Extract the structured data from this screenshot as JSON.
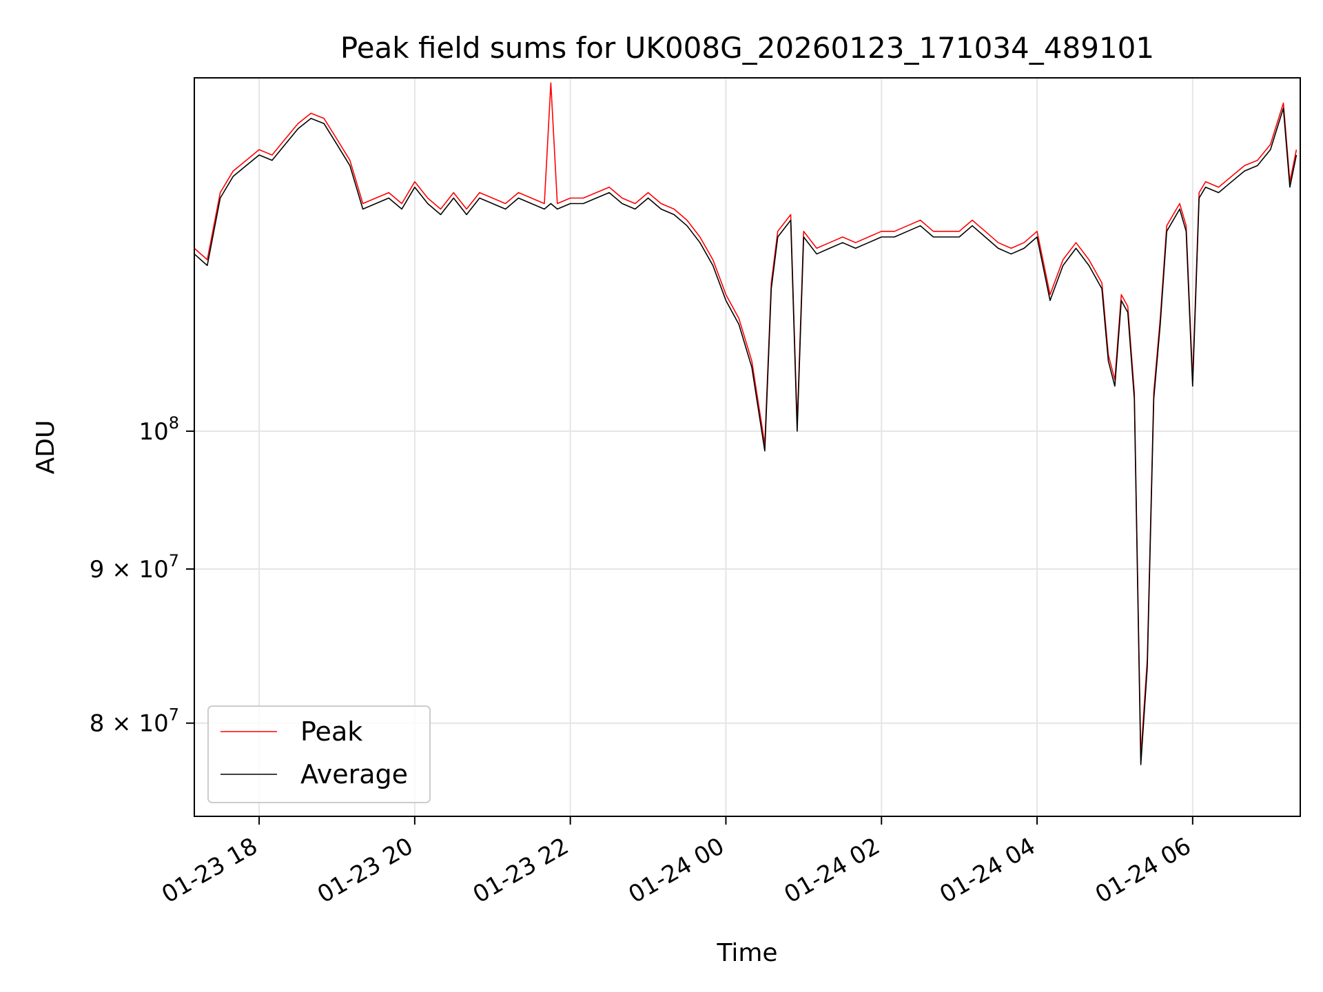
{
  "chart_data": {
    "type": "line",
    "title": "Peak field sums for UK008G_20260123_171034_489101",
    "xlabel": "Time",
    "ylabel": "ADU",
    "y_scale": "log",
    "ylim": [
      74500000,
      131000000
    ],
    "xlim": [
      "2026-01-23 17:10",
      "2026-01-24 07:23"
    ],
    "grid": true,
    "legend_position": "lower-left",
    "x_ticks": [
      {
        "value": "2026-01-23 18:00",
        "label": "01-23 18"
      },
      {
        "value": "2026-01-23 20:00",
        "label": "01-23 20"
      },
      {
        "value": "2026-01-23 22:00",
        "label": "01-23 22"
      },
      {
        "value": "2026-01-24 00:00",
        "label": "01-24 00"
      },
      {
        "value": "2026-01-24 02:00",
        "label": "01-24 02"
      },
      {
        "value": "2026-01-24 04:00",
        "label": "01-24 04"
      },
      {
        "value": "2026-01-24 06:00",
        "label": "01-24 06"
      }
    ],
    "y_ticks": [
      {
        "value": 80000000,
        "base": "8",
        "times": " × ",
        "exp_base": "10",
        "exp": "7"
      },
      {
        "value": 90000000,
        "base": "9",
        "times": " × ",
        "exp_base": "10",
        "exp": "7"
      },
      {
        "value": 100000000,
        "base": "",
        "times": "",
        "exp_base": "10",
        "exp": "8"
      }
    ],
    "colors": {
      "peak": "#ff0000",
      "average": "#000000",
      "grid": "#e5e5e5"
    },
    "series": [
      {
        "name": "Peak",
        "color": "#ff0000",
        "x": [
          "2026-01-23 17:10",
          "2026-01-23 17:20",
          "2026-01-23 17:30",
          "2026-01-23 17:40",
          "2026-01-23 17:50",
          "2026-01-23 18:00",
          "2026-01-23 18:10",
          "2026-01-23 18:20",
          "2026-01-23 18:30",
          "2026-01-23 18:40",
          "2026-01-23 18:50",
          "2026-01-23 19:00",
          "2026-01-23 19:10",
          "2026-01-23 19:20",
          "2026-01-23 19:30",
          "2026-01-23 19:40",
          "2026-01-23 19:50",
          "2026-01-23 20:00",
          "2026-01-23 20:10",
          "2026-01-23 20:20",
          "2026-01-23 20:30",
          "2026-01-23 20:40",
          "2026-01-23 20:50",
          "2026-01-23 21:00",
          "2026-01-23 21:10",
          "2026-01-23 21:20",
          "2026-01-23 21:30",
          "2026-01-23 21:40",
          "2026-01-23 21:45",
          "2026-01-23 21:50",
          "2026-01-23 22:00",
          "2026-01-23 22:10",
          "2026-01-23 22:20",
          "2026-01-23 22:30",
          "2026-01-23 22:40",
          "2026-01-23 22:50",
          "2026-01-23 23:00",
          "2026-01-23 23:10",
          "2026-01-23 23:20",
          "2026-01-23 23:30",
          "2026-01-23 23:40",
          "2026-01-23 23:50",
          "2026-01-24 00:00",
          "2026-01-24 00:10",
          "2026-01-24 00:20",
          "2026-01-24 00:30",
          "2026-01-24 00:35",
          "2026-01-24 00:40",
          "2026-01-24 00:50",
          "2026-01-24 00:55",
          "2026-01-24 01:00",
          "2026-01-24 01:10",
          "2026-01-24 01:20",
          "2026-01-24 01:30",
          "2026-01-24 01:40",
          "2026-01-24 01:50",
          "2026-01-24 02:00",
          "2026-01-24 02:10",
          "2026-01-24 02:20",
          "2026-01-24 02:30",
          "2026-01-24 02:40",
          "2026-01-24 02:50",
          "2026-01-24 03:00",
          "2026-01-24 03:10",
          "2026-01-24 03:20",
          "2026-01-24 03:30",
          "2026-01-24 03:40",
          "2026-01-24 03:50",
          "2026-01-24 04:00",
          "2026-01-24 04:10",
          "2026-01-24 04:20",
          "2026-01-24 04:30",
          "2026-01-24 04:40",
          "2026-01-24 04:50",
          "2026-01-24 04:55",
          "2026-01-24 05:00",
          "2026-01-24 05:05",
          "2026-01-24 05:10",
          "2026-01-24 05:15",
          "2026-01-24 05:20",
          "2026-01-24 05:25",
          "2026-01-24 05:30",
          "2026-01-24 05:35",
          "2026-01-24 05:40",
          "2026-01-24 05:50",
          "2026-01-24 05:55",
          "2026-01-24 06:00",
          "2026-01-24 06:05",
          "2026-01-24 06:10",
          "2026-01-24 06:20",
          "2026-01-24 06:30",
          "2026-01-24 06:40",
          "2026-01-24 06:50",
          "2026-01-24 07:00",
          "2026-01-24 07:10",
          "2026-01-24 07:15",
          "2026-01-24 07:20"
        ],
        "values": [
          115000000,
          114000000,
          120000000,
          122000000,
          123000000,
          124000000,
          123500000,
          125000000,
          126500000,
          127500000,
          127000000,
          125000000,
          123000000,
          119000000,
          119500000,
          120000000,
          119000000,
          121000000,
          119500000,
          118500000,
          120000000,
          118500000,
          120000000,
          119500000,
          119000000,
          120000000,
          119500000,
          119000000,
          130500000,
          119000000,
          119500000,
          119500000,
          120000000,
          120500000,
          119500000,
          119000000,
          120000000,
          119000000,
          118500000,
          117500000,
          116000000,
          114000000,
          111000000,
          109000000,
          105500000,
          99000000,
          112000000,
          116500000,
          118000000,
          100500000,
          116500000,
          115000000,
          115500000,
          116000000,
          115500000,
          116000000,
          116500000,
          116500000,
          117000000,
          117500000,
          116500000,
          116500000,
          116500000,
          117500000,
          116500000,
          115500000,
          115000000,
          115500000,
          116500000,
          111000000,
          114000000,
          115500000,
          114000000,
          112000000,
          106000000,
          104000000,
          111000000,
          110000000,
          103000000,
          78000000,
          84000000,
          103000000,
          109000000,
          117000000,
          119000000,
          117000000,
          104000000,
          120000000,
          121000000,
          120500000,
          121500000,
          122500000,
          123000000,
          124500000,
          128500000,
          121000000,
          124000000
        ]
      },
      {
        "name": "Average",
        "color": "#000000",
        "x": [
          "2026-01-23 17:10",
          "2026-01-23 17:20",
          "2026-01-23 17:30",
          "2026-01-23 17:40",
          "2026-01-23 17:50",
          "2026-01-23 18:00",
          "2026-01-23 18:10",
          "2026-01-23 18:20",
          "2026-01-23 18:30",
          "2026-01-23 18:40",
          "2026-01-23 18:50",
          "2026-01-23 19:00",
          "2026-01-23 19:10",
          "2026-01-23 19:20",
          "2026-01-23 19:30",
          "2026-01-23 19:40",
          "2026-01-23 19:50",
          "2026-01-23 20:00",
          "2026-01-23 20:10",
          "2026-01-23 20:20",
          "2026-01-23 20:30",
          "2026-01-23 20:40",
          "2026-01-23 20:50",
          "2026-01-23 21:00",
          "2026-01-23 21:10",
          "2026-01-23 21:20",
          "2026-01-23 21:30",
          "2026-01-23 21:40",
          "2026-01-23 21:45",
          "2026-01-23 21:50",
          "2026-01-23 22:00",
          "2026-01-23 22:10",
          "2026-01-23 22:20",
          "2026-01-23 22:30",
          "2026-01-23 22:40",
          "2026-01-23 22:50",
          "2026-01-23 23:00",
          "2026-01-23 23:10",
          "2026-01-23 23:20",
          "2026-01-23 23:30",
          "2026-01-23 23:40",
          "2026-01-23 23:50",
          "2026-01-24 00:00",
          "2026-01-24 00:10",
          "2026-01-24 00:20",
          "2026-01-24 00:30",
          "2026-01-24 00:35",
          "2026-01-24 00:40",
          "2026-01-24 00:50",
          "2026-01-24 00:55",
          "2026-01-24 01:00",
          "2026-01-24 01:10",
          "2026-01-24 01:20",
          "2026-01-24 01:30",
          "2026-01-24 01:40",
          "2026-01-24 01:50",
          "2026-01-24 02:00",
          "2026-01-24 02:10",
          "2026-01-24 02:20",
          "2026-01-24 02:30",
          "2026-01-24 02:40",
          "2026-01-24 02:50",
          "2026-01-24 03:00",
          "2026-01-24 03:10",
          "2026-01-24 03:20",
          "2026-01-24 03:30",
          "2026-01-24 03:40",
          "2026-01-24 03:50",
          "2026-01-24 04:00",
          "2026-01-24 04:10",
          "2026-01-24 04:20",
          "2026-01-24 04:30",
          "2026-01-24 04:40",
          "2026-01-24 04:50",
          "2026-01-24 04:55",
          "2026-01-24 05:00",
          "2026-01-24 05:05",
          "2026-01-24 05:10",
          "2026-01-24 05:15",
          "2026-01-24 05:20",
          "2026-01-24 05:25",
          "2026-01-24 05:30",
          "2026-01-24 05:35",
          "2026-01-24 05:40",
          "2026-01-24 05:50",
          "2026-01-24 05:55",
          "2026-01-24 06:00",
          "2026-01-24 06:05",
          "2026-01-24 06:10",
          "2026-01-24 06:20",
          "2026-01-24 06:30",
          "2026-01-24 06:40",
          "2026-01-24 06:50",
          "2026-01-24 07:00",
          "2026-01-24 07:10",
          "2026-01-24 07:15",
          "2026-01-24 07:20"
        ],
        "values": [
          114500000,
          113500000,
          119500000,
          121500000,
          122500000,
          123500000,
          123000000,
          124500000,
          126000000,
          127000000,
          126500000,
          124500000,
          122500000,
          118500000,
          119000000,
          119500000,
          118500000,
          120500000,
          119000000,
          118000000,
          119500000,
          118000000,
          119500000,
          119000000,
          118500000,
          119500000,
          119000000,
          118500000,
          119000000,
          118500000,
          119000000,
          119000000,
          119500000,
          120000000,
          119000000,
          118500000,
          119500000,
          118500000,
          118000000,
          117000000,
          115500000,
          113500000,
          110500000,
          108500000,
          105000000,
          98500000,
          111500000,
          116000000,
          117500000,
          100000000,
          116000000,
          114500000,
          115000000,
          115500000,
          115000000,
          115500000,
          116000000,
          116000000,
          116500000,
          117000000,
          116000000,
          116000000,
          116000000,
          117000000,
          116000000,
          115000000,
          114500000,
          115000000,
          116000000,
          110500000,
          113500000,
          115000000,
          113500000,
          111500000,
          105500000,
          103500000,
          110500000,
          109500000,
          102500000,
          77500000,
          83500000,
          102500000,
          108500000,
          116500000,
          118500000,
          116500000,
          103500000,
          119500000,
          120500000,
          120000000,
          121000000,
          122000000,
          122500000,
          124000000,
          128000000,
          120500000,
          123500000
        ]
      }
    ]
  }
}
